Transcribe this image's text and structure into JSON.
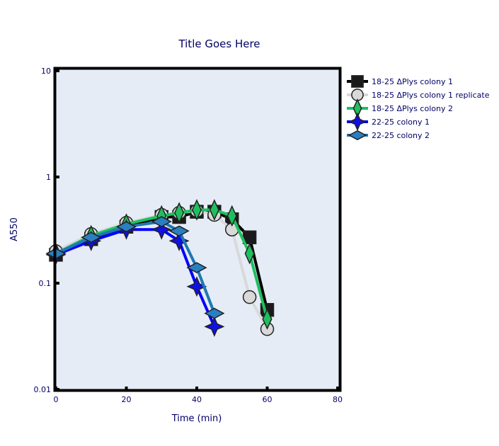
{
  "chart_data": {
    "type": "line",
    "title": "Title Goes Here",
    "xlabel": "Time (min)",
    "ylabel": "A550",
    "xlim": [
      0,
      80
    ],
    "ylim": [
      0.01,
      10
    ],
    "yscale": "log",
    "xticks": [
      "0",
      "20",
      "40",
      "60",
      "80"
    ],
    "yticks": [
      "0.01",
      "0.1",
      "1",
      "10"
    ],
    "plot_background": "#e5ecf6",
    "legend_position": "top-right, outside plot",
    "series": [
      {
        "name": "18-25 ΔPlys colony 1",
        "color": "#000000",
        "marker_color": "#1a1a1a",
        "marker": "square",
        "x": [
          0,
          10,
          20,
          30,
          35,
          40,
          45,
          50,
          55,
          60
        ],
        "y": [
          0.185,
          0.26,
          0.34,
          0.42,
          0.42,
          0.47,
          0.47,
          0.4,
          0.27,
          0.056
        ]
      },
      {
        "name": "18-25 ΔPlys colony 1 replicate",
        "color": "#d9d9d9",
        "marker_color": "#d9d9d9",
        "marker": "circle",
        "x": [
          0,
          10,
          20,
          30,
          35,
          40,
          45,
          50,
          55,
          60
        ],
        "y": [
          0.2,
          0.29,
          0.37,
          0.44,
          0.46,
          0.48,
          0.44,
          0.32,
          0.074,
          0.037
        ]
      },
      {
        "name": "18-25 ΔPlys colony 2",
        "color": "#1fbf5f",
        "marker_color": "#1fbf5f",
        "marker": "diamond-tall",
        "x": [
          0,
          10,
          20,
          30,
          35,
          40,
          45,
          50,
          55,
          60
        ],
        "y": [
          0.19,
          0.28,
          0.36,
          0.43,
          0.46,
          0.49,
          0.49,
          0.43,
          0.19,
          0.046
        ]
      },
      {
        "name": "22-25 colony 1",
        "color": "#0000ff",
        "marker_color": "#1010e0",
        "marker": "star4",
        "x": [
          0,
          10,
          20,
          30,
          35,
          40,
          45
        ],
        "y": [
          0.185,
          0.25,
          0.32,
          0.32,
          0.25,
          0.093,
          0.039
        ]
      },
      {
        "name": "22-25 colony 2",
        "color": "#1f77b4",
        "marker_color": "#2a7fc0",
        "marker": "diamond-wide",
        "x": [
          0,
          10,
          20,
          30,
          35,
          40,
          45
        ],
        "y": [
          0.19,
          0.27,
          0.34,
          0.38,
          0.31,
          0.14,
          0.052
        ]
      }
    ]
  }
}
